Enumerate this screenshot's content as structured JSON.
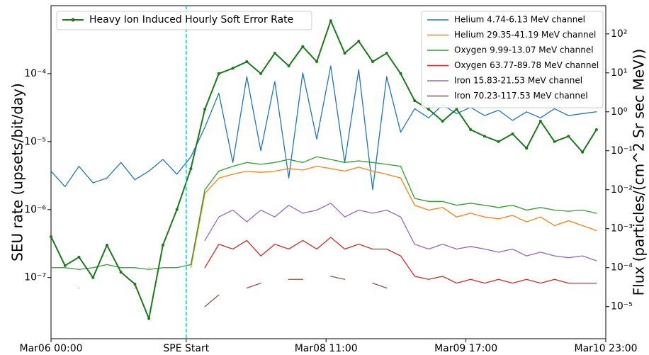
{
  "chart_data": {
    "type": "line",
    "y_label": "SEU rate (upsets/bit/day)",
    "y2_label": "Flux (particles/(cm^2 Sr sec MeV))",
    "log_scale": true,
    "x": [
      0,
      3,
      6,
      9,
      12,
      15,
      18,
      21,
      24,
      27,
      30,
      33,
      36,
      39,
      42,
      45,
      48,
      51,
      54,
      57,
      60,
      63,
      66,
      69,
      72,
      75,
      78,
      81,
      84,
      87,
      90,
      93,
      96,
      99,
      102,
      105,
      108,
      111,
      114,
      117
    ],
    "xlim": [
      0,
      119
    ],
    "xticks": [
      {
        "value": 0,
        "label": "Mar06 00:00"
      },
      {
        "value": 29,
        "label": "SPE Start"
      },
      {
        "value": 59,
        "label": "Mar08 11:00"
      },
      {
        "value": 89,
        "label": "Mar09 17:00"
      },
      {
        "value": 119,
        "label": "Mar10 23:00"
      }
    ],
    "vline": 29,
    "vline_color": "#17becf",
    "ylim": [
      1.26e-08,
      0.001
    ],
    "yticks": [
      {
        "value": 1e-07,
        "label": "10⁻⁷"
      },
      {
        "value": 1e-06,
        "label": "10⁻⁶"
      },
      {
        "value": 1e-05,
        "label": "10⁻⁵"
      },
      {
        "value": 0.0001,
        "label": "10⁻⁴"
      }
    ],
    "y2lim": [
      1.5e-06,
      530
    ],
    "y2ticks": [
      {
        "value": 1e-05,
        "label": "10⁻⁵"
      },
      {
        "value": 0.0001,
        "label": "10⁻⁴"
      },
      {
        "value": 0.001,
        "label": "10⁻³"
      },
      {
        "value": 0.01,
        "label": "10⁻²"
      },
      {
        "value": 0.1,
        "label": "10⁻¹"
      },
      {
        "value": 1,
        "label": "10⁰"
      },
      {
        "value": 10,
        "label": "10¹"
      },
      {
        "value": 100,
        "label": "10²"
      }
    ],
    "legend": "upper left",
    "legend2": "upper right",
    "series": [
      {
        "name": "Helium 4.74-6.13 MeV channel",
        "color": "#1f77b4",
        "axis": "y2",
        "values": [
          0.03,
          0.012,
          0.04,
          0.015,
          0.02,
          0.05,
          0.018,
          0.03,
          0.06,
          0.025,
          0.07,
          0.4,
          3,
          0.05,
          8,
          0.1,
          6,
          0.02,
          10,
          0.2,
          15,
          0.05,
          12,
          0.01,
          8,
          0.3,
          1.2,
          0.7,
          1.5,
          0.9,
          1.3,
          0.8,
          1.1,
          0.6,
          1.0,
          0.7,
          1.2,
          0.8,
          0.9,
          1.0
        ]
      },
      {
        "name": "Helium 29.35-41.19 MeV channel",
        "color": "#ff7f0e",
        "axis": "y2",
        "values": [
          null,
          0.0001,
          null,
          null,
          0.0002,
          null,
          null,
          0.0001,
          null,
          null,
          0.0001,
          0.008,
          0.02,
          0.025,
          0.03,
          0.028,
          0.03,
          0.035,
          0.032,
          0.04,
          0.035,
          0.03,
          0.038,
          0.03,
          0.025,
          0.02,
          0.004,
          0.003,
          0.0035,
          0.002,
          0.0025,
          0.002,
          0.0018,
          0.0022,
          0.0015,
          0.002,
          0.0012,
          0.0016,
          0.0012,
          0.0009
        ]
      },
      {
        "name": "Oxygen 9.99-13.07 MeV channel",
        "color": "#2ca02c",
        "axis": "y2",
        "values": [
          0.0001,
          0.0001,
          9e-05,
          0.0001,
          0.00012,
          0.0001,
          0.0001,
          9e-05,
          0.0001,
          0.0001,
          0.00012,
          0.01,
          0.03,
          0.04,
          0.05,
          0.045,
          0.05,
          0.06,
          0.05,
          0.07,
          0.06,
          0.05,
          0.055,
          0.05,
          0.045,
          0.04,
          0.006,
          0.005,
          0.005,
          0.004,
          0.0045,
          0.004,
          0.0035,
          0.004,
          0.003,
          0.0035,
          0.003,
          0.0028,
          0.003,
          0.0025
        ]
      },
      {
        "name": "Oxygen 63.77-89.78 MeV channel",
        "color": "#d62728",
        "axis": "y2",
        "values": [
          null,
          null,
          3e-05,
          null,
          null,
          null,
          3e-05,
          null,
          null,
          null,
          null,
          0.0001,
          0.0004,
          0.0003,
          0.0005,
          0.0002,
          0.0004,
          0.0003,
          0.0005,
          0.0003,
          0.0006,
          0.0003,
          0.0004,
          0.0003,
          0.0003,
          0.0002,
          6e-05,
          5e-05,
          6e-05,
          4e-05,
          5e-05,
          4e-05,
          5e-05,
          4e-05,
          5e-05,
          4e-05,
          5e-05,
          4e-05,
          4e-05,
          4e-05
        ]
      },
      {
        "name": "Iron 15.83-21.53 MeV channel",
        "color": "#9467bd",
        "axis": "y2",
        "values": [
          null,
          null,
          null,
          null,
          null,
          null,
          null,
          null,
          null,
          null,
          null,
          0.0005,
          0.002,
          0.003,
          0.0015,
          0.003,
          0.002,
          0.004,
          0.0025,
          0.003,
          0.0045,
          0.002,
          0.003,
          0.0025,
          0.003,
          0.002,
          0.0004,
          0.0003,
          0.0004,
          0.0003,
          0.00035,
          0.0003,
          0.00025,
          0.0003,
          0.0002,
          0.00025,
          0.0002,
          0.00018,
          0.0002,
          0.00015
        ]
      },
      {
        "name": "Iron 70.23-117.53 MeV channel",
        "color": "#8c564b",
        "axis": "y2",
        "values": [
          null,
          null,
          null,
          null,
          null,
          null,
          null,
          null,
          null,
          null,
          null,
          1e-05,
          2e-05,
          null,
          3e-05,
          4e-05,
          null,
          5e-05,
          5e-05,
          null,
          6e-05,
          5e-05,
          null,
          4e-05,
          3e-05,
          null,
          null,
          null,
          null,
          null,
          null,
          null,
          null,
          null,
          null,
          null,
          null,
          null,
          null,
          null
        ]
      },
      {
        "name": "Heavy Ion Induced Hourly Soft Error Rate",
        "color": "#1a7a1a",
        "axis": "y",
        "markers": true,
        "values": [
          4e-07,
          1.5e-07,
          2e-07,
          1e-07,
          3e-07,
          1.2e-07,
          8e-08,
          2.5e-08,
          3e-07,
          1e-06,
          4e-06,
          3e-05,
          0.0001,
          0.00012,
          0.00015,
          0.0001,
          0.0002,
          0.00013,
          0.00025,
          0.00015,
          0.0006,
          0.0002,
          0.0003,
          0.00015,
          0.0002,
          0.0001,
          4e-05,
          3e-05,
          2e-05,
          3e-05,
          1.5e-05,
          1.2e-05,
          1e-05,
          1.3e-05,
          8e-06,
          2e-05,
          1e-05,
          1.2e-05,
          7e-06,
          1.5e-05
        ]
      }
    ]
  }
}
